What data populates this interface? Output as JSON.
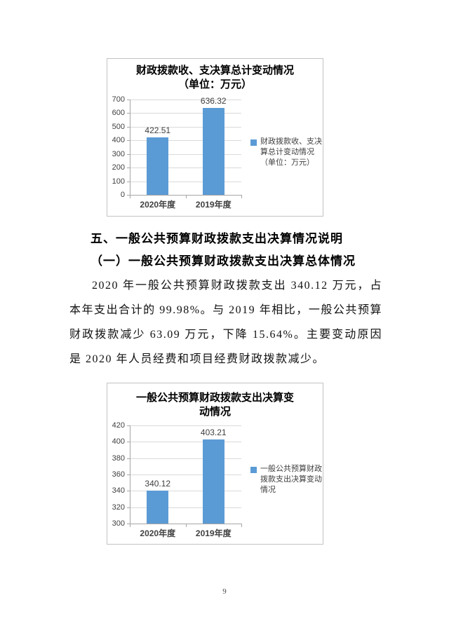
{
  "headings": {
    "section": "五、一般公共预算财政拨款支出决算情况说明",
    "subsection": "（一）一般公共预算财政拨款支出决算总体情况"
  },
  "paragraph": "2020 年一般公共预算财政拨款支出 340.12 万元，占本年支出合计的 99.98%。与 2019 年相比，一般公共预算财政拨款减少 63.09 万元，下降 15.64%。主要变动原因是 2020 年人员经费和项目经费财政拨款减少。",
  "page_number": "9",
  "colors": {
    "bar": "#5b9bd5",
    "grid": "#d9d9d9",
    "axis": "#a6a6a6",
    "box_border": "#c3c3c3"
  },
  "chart_data": [
    {
      "type": "bar",
      "title": "财政拨款收、支决算总计变动情况（单位：万元）",
      "title_lines": [
        "财政拨款收、支决算总计变动情况",
        "（单位：万元）"
      ],
      "categories": [
        "2020年度",
        "2019年度"
      ],
      "values": [
        422.51,
        636.32
      ],
      "data_labels": [
        "422.51",
        "636.32"
      ],
      "legend_lines": [
        "财政拨款收、支决",
        "算总计变动情况",
        "（单位：万元）"
      ],
      "legend_position": "right",
      "xlabel": "",
      "ylabel": "",
      "ylim": [
        0,
        700
      ],
      "ytick_step": 100,
      "grid": true
    },
    {
      "type": "bar",
      "title": "一般公共预算财政拨款支出决算变动情况",
      "title_lines": [
        "一般公共预算财政拨款支出决算变",
        "动情况"
      ],
      "categories": [
        "2020年度",
        "2019年度"
      ],
      "values": [
        340.12,
        403.21
      ],
      "data_labels": [
        "340.12",
        "403.21"
      ],
      "legend_lines": [
        "一般公共预算财政",
        "拨款支出决算变动",
        "情况"
      ],
      "legend_position": "right",
      "xlabel": "",
      "ylabel": "",
      "ylim": [
        300,
        420
      ],
      "ytick_step": 20,
      "grid": true
    }
  ]
}
